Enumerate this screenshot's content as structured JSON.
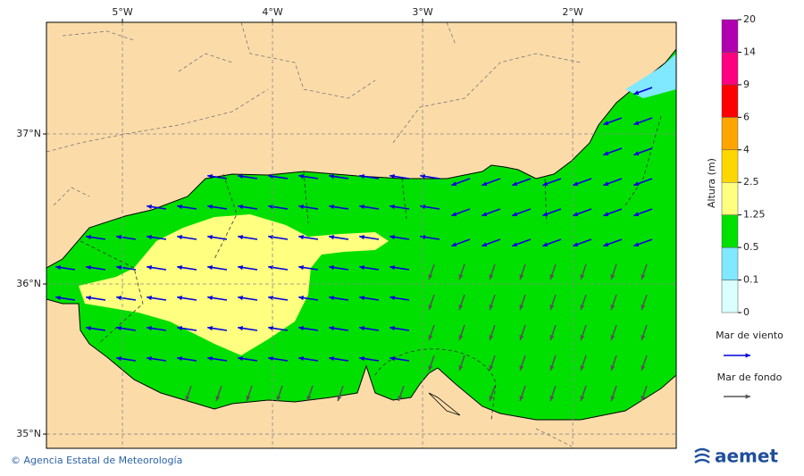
{
  "map": {
    "extent": {
      "lon": [
        -5.506,
        -1.31
      ],
      "lat": [
        34.905,
        37.744
      ]
    },
    "lon_ticks": [
      {
        "value": -5,
        "label": "5°W"
      },
      {
        "value": -4,
        "label": "4°W"
      },
      {
        "value": -3,
        "label": "3°W"
      },
      {
        "value": -2,
        "label": "2°W"
      }
    ],
    "lat_ticks": [
      {
        "value": 37,
        "label": "37°N"
      },
      {
        "value": 36,
        "label": "36°N"
      },
      {
        "value": 35,
        "label": "35°N"
      }
    ]
  },
  "legend": {
    "title": "Altura (m)",
    "levels": [
      0,
      0.1,
      0.5,
      1.25,
      2.5,
      4,
      6,
      9,
      14,
      20
    ],
    "colors": [
      "#d9ffff",
      "#80e8ff",
      "#00e000",
      "#ffff80",
      "#ffd700",
      "#ffa500",
      "#ff0000",
      "#ff0080",
      "#b000b0"
    ],
    "wind_sea": {
      "label": "Mar de viento",
      "color": "#0000dd"
    },
    "swell": {
      "label": "Mar de fondo",
      "color": "#555555"
    }
  },
  "footer": {
    "credit": "© Agencia Estatal de Meteorología",
    "logo": "aemet"
  }
}
